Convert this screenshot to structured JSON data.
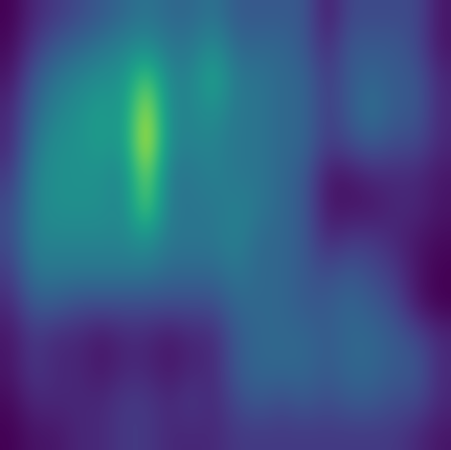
{
  "chart_data": {
    "type": "heatmap",
    "tick_labels": false,
    "cells": [
      [
        0.1,
        0.2,
        0.25,
        0.3,
        0.35,
        0.4,
        0.45,
        0.4,
        0.4,
        0.45,
        0.35,
        0.35,
        0.35,
        0.35,
        0.15,
        0.3,
        0.3,
        0.3,
        0.3,
        0.15
      ],
      [
        0.12,
        0.25,
        0.35,
        0.4,
        0.45,
        0.5,
        0.55,
        0.45,
        0.45,
        0.55,
        0.4,
        0.4,
        0.4,
        0.35,
        0.2,
        0.35,
        0.35,
        0.35,
        0.3,
        0.15
      ],
      [
        0.15,
        0.35,
        0.45,
        0.5,
        0.55,
        0.55,
        0.8,
        0.5,
        0.5,
        0.65,
        0.45,
        0.45,
        0.4,
        0.4,
        0.25,
        0.35,
        0.4,
        0.35,
        0.35,
        0.2
      ],
      [
        0.2,
        0.4,
        0.5,
        0.55,
        0.6,
        0.55,
        0.95,
        0.5,
        0.5,
        0.55,
        0.45,
        0.45,
        0.4,
        0.4,
        0.25,
        0.35,
        0.45,
        0.35,
        0.35,
        0.2
      ],
      [
        0.2,
        0.45,
        0.55,
        0.55,
        0.6,
        0.55,
        1.0,
        0.5,
        0.5,
        0.5,
        0.45,
        0.45,
        0.4,
        0.4,
        0.25,
        0.3,
        0.35,
        0.3,
        0.3,
        0.2
      ],
      [
        0.25,
        0.5,
        0.55,
        0.55,
        0.55,
        0.5,
        0.85,
        0.45,
        0.45,
        0.5,
        0.45,
        0.45,
        0.4,
        0.35,
        0.15,
        0.15,
        0.2,
        0.2,
        0.2,
        0.15
      ],
      [
        0.3,
        0.5,
        0.55,
        0.55,
        0.55,
        0.5,
        0.8,
        0.45,
        0.45,
        0.45,
        0.5,
        0.45,
        0.4,
        0.35,
        0.15,
        0.15,
        0.15,
        0.2,
        0.2,
        0.15
      ],
      [
        0.3,
        0.5,
        0.5,
        0.5,
        0.5,
        0.5,
        0.55,
        0.45,
        0.45,
        0.45,
        0.5,
        0.4,
        0.4,
        0.35,
        0.2,
        0.25,
        0.25,
        0.2,
        0.15,
        0.12
      ],
      [
        0.25,
        0.45,
        0.45,
        0.45,
        0.45,
        0.45,
        0.45,
        0.4,
        0.4,
        0.4,
        0.45,
        0.4,
        0.4,
        0.35,
        0.3,
        0.35,
        0.3,
        0.25,
        0.15,
        0.1
      ],
      [
        0.2,
        0.35,
        0.35,
        0.3,
        0.3,
        0.3,
        0.3,
        0.3,
        0.3,
        0.3,
        0.4,
        0.4,
        0.4,
        0.35,
        0.35,
        0.4,
        0.35,
        0.3,
        0.15,
        0.1
      ],
      [
        0.15,
        0.25,
        0.2,
        0.2,
        0.15,
        0.2,
        0.2,
        0.15,
        0.2,
        0.2,
        0.35,
        0.4,
        0.4,
        0.4,
        0.35,
        0.4,
        0.4,
        0.35,
        0.3,
        0.2
      ],
      [
        0.15,
        0.25,
        0.2,
        0.2,
        0.15,
        0.2,
        0.2,
        0.15,
        0.2,
        0.2,
        0.35,
        0.4,
        0.4,
        0.4,
        0.35,
        0.4,
        0.4,
        0.35,
        0.35,
        0.2
      ],
      [
        0.12,
        0.2,
        0.2,
        0.2,
        0.2,
        0.25,
        0.25,
        0.2,
        0.25,
        0.2,
        0.3,
        0.35,
        0.3,
        0.35,
        0.3,
        0.35,
        0.35,
        0.3,
        0.3,
        0.2
      ],
      [
        0.1,
        0.15,
        0.15,
        0.2,
        0.2,
        0.25,
        0.25,
        0.2,
        0.2,
        0.2,
        0.25,
        0.25,
        0.25,
        0.25,
        0.25,
        0.25,
        0.25,
        0.25,
        0.2,
        0.15
      ]
    ]
  }
}
